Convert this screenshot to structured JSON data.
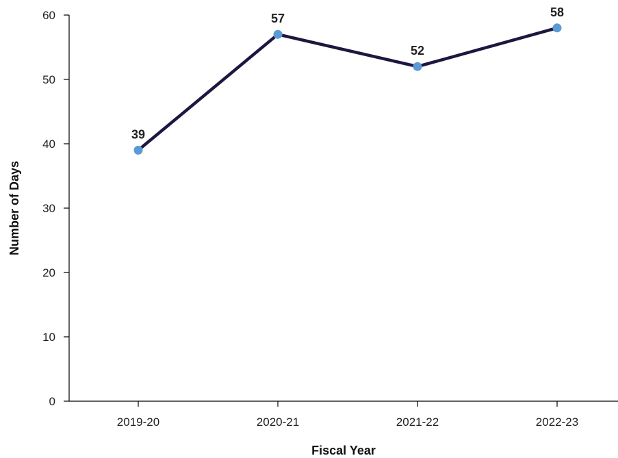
{
  "chart_data": {
    "type": "line",
    "categories": [
      "2019-20",
      "2020-21",
      "2021-22",
      "2022-23"
    ],
    "series": [
      {
        "values": [
          39,
          57,
          52,
          58
        ]
      }
    ],
    "data_labels": [
      "39",
      "57",
      "52",
      "58"
    ],
    "xlabel": "Fiscal Year",
    "ylabel": "Number of Days",
    "ylim": [
      0,
      60
    ],
    "yticks": [
      0,
      10,
      20,
      30,
      40,
      50,
      60
    ],
    "ytick_labels": [
      "0",
      "10",
      "20",
      "30",
      "40",
      "50",
      "60"
    ],
    "grid": false,
    "legend": "none",
    "colors": {
      "line": "#1f1640",
      "marker": "#5b9bd5",
      "axis": "#000000"
    }
  }
}
